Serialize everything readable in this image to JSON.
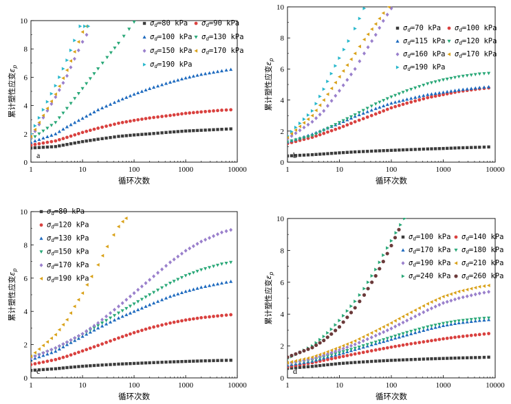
{
  "colors": {
    "black": "#3c3c3c",
    "red": "#d9413f",
    "blue": "#1f6bbf",
    "green": "#2aa878",
    "purple": "#9a80cc",
    "orange": "#d9a21a",
    "cyan": "#2ab8cc",
    "maroon": "#6b3a3a"
  },
  "chart_data": [
    {
      "type": "scatter",
      "panel_label": "a",
      "xlabel": "循环次数",
      "ylabel": "累计塑性应变ε_p",
      "x_scale": "log",
      "xlim": [
        1,
        10000
      ],
      "ylim": [
        0,
        10
      ],
      "x_ticks": [
        1,
        10,
        100,
        1000,
        10000
      ],
      "x_tick_labels": [
        "1",
        "10",
        "100",
        "1000",
        "10000"
      ],
      "y_ticks": [
        0,
        2,
        4,
        6,
        8,
        10
      ],
      "y_tick_labels": [
        "0",
        "2",
        "4",
        "6",
        "8",
        "10"
      ],
      "legend_columns": 2,
      "series": [
        {
          "name": "σd=80 kPa",
          "color": "black",
          "marker": "square",
          "x": [
            1,
            3,
            5,
            10,
            20,
            50,
            100,
            200,
            500,
            1000,
            2000,
            5000,
            7500
          ],
          "y": [
            1.0,
            1.1,
            1.25,
            1.45,
            1.62,
            1.82,
            1.92,
            2.0,
            2.12,
            2.2,
            2.25,
            2.32,
            2.35
          ]
        },
        {
          "name": "σd=90 kPa",
          "color": "red",
          "marker": "circle",
          "x": [
            1,
            3,
            5,
            10,
            20,
            50,
            100,
            200,
            500,
            1000,
            2000,
            5000,
            7500
          ],
          "y": [
            1.2,
            1.5,
            1.75,
            2.1,
            2.4,
            2.75,
            2.95,
            3.12,
            3.3,
            3.45,
            3.55,
            3.67,
            3.7
          ]
        },
        {
          "name": "σd=100 kPa",
          "color": "blue",
          "marker": "triangle",
          "x": [
            1,
            3,
            5,
            10,
            20,
            50,
            100,
            200,
            500,
            1000,
            2000,
            5000,
            7500
          ],
          "y": [
            1.4,
            2.0,
            2.5,
            3.1,
            3.7,
            4.35,
            4.8,
            5.2,
            5.65,
            5.95,
            6.2,
            6.45,
            6.55
          ]
        },
        {
          "name": "σd=130 kPa",
          "color": "green",
          "marker": "triangle-down",
          "x": [
            1,
            3,
            5,
            10,
            20,
            30,
            50,
            80,
            100
          ],
          "y": [
            1.6,
            2.8,
            3.8,
            5.2,
            6.6,
            7.4,
            8.4,
            9.4,
            9.9
          ]
        },
        {
          "name": "σd=150 kPa",
          "color": "purple",
          "marker": "diamond",
          "x": [
            1,
            3,
            5,
            7,
            10,
            12
          ],
          "y": [
            1.7,
            4.6,
            6.1,
            7.3,
            8.5,
            9.0
          ]
        },
        {
          "name": "σd=170 kPa",
          "color": "orange",
          "marker": "triangle-left",
          "x": [
            1,
            3,
            5,
            7,
            10,
            12
          ],
          "y": [
            1.8,
            4.8,
            6.5,
            7.8,
            9.2,
            9.6
          ]
        },
        {
          "name": "σd=190 kPa",
          "color": "cyan",
          "marker": "triangle-right",
          "x": [
            1,
            3,
            5,
            7,
            9,
            11,
            13
          ],
          "y": [
            2.0,
            5.4,
            7.2,
            8.6,
            9.6,
            9.6,
            9.6
          ]
        }
      ]
    },
    {
      "type": "scatter",
      "panel_label": "b",
      "xlabel": "循环次数",
      "ylabel": "累计塑性应变ε_p",
      "x_scale": "log",
      "xlim": [
        1,
        10000
      ],
      "ylim": [
        0,
        10
      ],
      "x_ticks": [
        1,
        10,
        100,
        1000,
        10000
      ],
      "x_tick_labels": [
        "1",
        "10",
        "100",
        "1000",
        "10000"
      ],
      "y_ticks": [
        0,
        2,
        4,
        6,
        8,
        10
      ],
      "y_tick_labels": [
        "0",
        "2",
        "4",
        "6",
        "8",
        "10"
      ],
      "legend_columns": 2,
      "series": [
        {
          "name": "σd=70 kPa",
          "color": "black",
          "marker": "square",
          "x": [
            1,
            3,
            5,
            10,
            20,
            50,
            100,
            200,
            500,
            1000,
            2000,
            5000,
            7500
          ],
          "y": [
            0.4,
            0.48,
            0.53,
            0.6,
            0.66,
            0.72,
            0.76,
            0.8,
            0.85,
            0.88,
            0.92,
            0.96,
            0.98
          ]
        },
        {
          "name": "σd=100 kPa",
          "color": "red",
          "marker": "circle",
          "x": [
            1,
            3,
            5,
            10,
            20,
            50,
            100,
            200,
            500,
            1000,
            2000,
            5000,
            7500
          ],
          "y": [
            1.2,
            1.6,
            1.85,
            2.2,
            2.6,
            3.1,
            3.5,
            3.8,
            4.15,
            4.35,
            4.55,
            4.72,
            4.78
          ]
        },
        {
          "name": "σd=115 kPa",
          "color": "blue",
          "marker": "triangle",
          "x": [
            1,
            3,
            5,
            10,
            20,
            50,
            100,
            200,
            500,
            1000,
            2000,
            5000,
            7500
          ],
          "y": [
            1.3,
            1.8,
            2.1,
            2.5,
            2.95,
            3.45,
            3.8,
            4.05,
            4.35,
            4.5,
            4.65,
            4.8,
            4.85
          ]
        },
        {
          "name": "σd=120 kPa",
          "color": "green",
          "marker": "triangle-down",
          "x": [
            1,
            3,
            5,
            10,
            20,
            50,
            100,
            200,
            500,
            1000,
            2000,
            5000,
            7500
          ],
          "y": [
            1.3,
            1.7,
            2.05,
            2.55,
            3.05,
            3.75,
            4.2,
            4.6,
            5.05,
            5.3,
            5.5,
            5.68,
            5.72
          ]
        },
        {
          "name": "σd=160 kPa",
          "color": "purple",
          "marker": "diamond",
          "x": [
            1,
            3,
            5,
            10,
            20,
            30,
            50,
            70,
            100
          ],
          "y": [
            1.5,
            2.6,
            3.3,
            4.6,
            6.0,
            7.0,
            8.2,
            9.1,
            9.9
          ]
        },
        {
          "name": "σd=170 kPa",
          "color": "orange",
          "marker": "triangle-left",
          "x": [
            1,
            3,
            5,
            10,
            20,
            30,
            50,
            70,
            90
          ],
          "y": [
            1.6,
            3.0,
            4.0,
            5.5,
            7.0,
            7.9,
            8.9,
            9.6,
            10.0
          ]
        },
        {
          "name": "σd=190 kPa",
          "color": "cyan",
          "marker": "triangle-right",
          "x": [
            1,
            3,
            5,
            7,
            10,
            15,
            20,
            30
          ],
          "y": [
            1.7,
            3.3,
            4.7,
            5.7,
            6.7,
            7.8,
            8.6,
            9.9
          ]
        }
      ]
    },
    {
      "type": "scatter",
      "panel_label": "c",
      "xlabel": "循环次数",
      "ylabel": "累计塑性应变ε_p",
      "x_scale": "log",
      "xlim": [
        1,
        10000
      ],
      "ylim": [
        0,
        10
      ],
      "x_ticks": [
        1,
        10,
        100,
        1000,
        10000
      ],
      "x_tick_labels": [
        "1",
        "10",
        "100",
        "1000",
        "10000"
      ],
      "y_ticks": [
        0,
        2,
        4,
        6,
        8,
        10
      ],
      "y_tick_labels": [
        "0",
        "2",
        "4",
        "6",
        "8",
        "10"
      ],
      "legend_columns": 1,
      "series": [
        {
          "name": "σd=80 kPa",
          "color": "black",
          "marker": "square",
          "x": [
            1,
            3,
            5,
            10,
            20,
            50,
            100,
            200,
            500,
            1000,
            2000,
            5000,
            7500
          ],
          "y": [
            0.45,
            0.55,
            0.62,
            0.7,
            0.76,
            0.83,
            0.87,
            0.91,
            0.96,
            0.99,
            1.02,
            1.05,
            1.06
          ]
        },
        {
          "name": "σd=120 kPa",
          "color": "red",
          "marker": "circle",
          "x": [
            1,
            3,
            5,
            10,
            20,
            50,
            100,
            200,
            500,
            1000,
            2000,
            5000,
            7500
          ],
          "y": [
            0.8,
            1.1,
            1.3,
            1.62,
            1.95,
            2.4,
            2.72,
            3.0,
            3.3,
            3.48,
            3.62,
            3.75,
            3.8
          ]
        },
        {
          "name": "σd=130 kPa",
          "color": "blue",
          "marker": "triangle",
          "x": [
            1,
            3,
            5,
            10,
            20,
            50,
            100,
            200,
            500,
            1000,
            2000,
            5000,
            7500
          ],
          "y": [
            1.1,
            1.6,
            2.0,
            2.5,
            3.0,
            3.6,
            4.0,
            4.4,
            4.9,
            5.2,
            5.45,
            5.7,
            5.8
          ]
        },
        {
          "name": "σd=150 kPa",
          "color": "green",
          "marker": "triangle-down",
          "x": [
            1,
            3,
            5,
            10,
            20,
            50,
            100,
            200,
            500,
            1000,
            2000,
            5000,
            7500
          ],
          "y": [
            1.2,
            1.75,
            2.1,
            2.6,
            3.15,
            3.9,
            4.45,
            5.0,
            5.7,
            6.15,
            6.5,
            6.85,
            6.95
          ]
        },
        {
          "name": "σd=170 kPa",
          "color": "purple",
          "marker": "diamond",
          "x": [
            1,
            3,
            5,
            10,
            20,
            50,
            100,
            200,
            500,
            1000,
            2000,
            5000,
            7500
          ],
          "y": [
            1.2,
            1.8,
            2.15,
            2.65,
            3.3,
            4.3,
            5.1,
            5.9,
            6.95,
            7.65,
            8.2,
            8.75,
            8.9
          ]
        },
        {
          "name": "σd=190 kPa",
          "color": "orange",
          "marker": "triangle-left",
          "x": [
            1,
            3,
            5,
            7,
            10,
            15,
            20,
            30,
            40,
            50,
            60,
            70
          ],
          "y": [
            1.3,
            2.6,
            3.5,
            4.3,
            5.1,
            6.1,
            6.8,
            7.9,
            8.6,
            9.1,
            9.4,
            9.6
          ]
        }
      ]
    },
    {
      "type": "scatter",
      "panel_label": "d",
      "xlabel": "循环次数",
      "ylabel": "累计塑性应变ε_p",
      "x_scale": "log",
      "xlim": [
        1,
        10000
      ],
      "ylim": [
        0,
        10
      ],
      "x_ticks": [
        1,
        10,
        100,
        1000,
        10000
      ],
      "x_tick_labels": [
        "1",
        "10",
        "100",
        "1000",
        "10000"
      ],
      "y_ticks": [
        0,
        2,
        4,
        6,
        8,
        10
      ],
      "y_tick_labels": [
        "0",
        "2",
        "4",
        "6",
        "8",
        "10"
      ],
      "legend_columns": 2,
      "series": [
        {
          "name": "σd=100 kPa",
          "color": "black",
          "marker": "square",
          "x": [
            1,
            3,
            5,
            10,
            20,
            50,
            100,
            200,
            500,
            1000,
            2000,
            5000,
            7500
          ],
          "y": [
            0.6,
            0.72,
            0.8,
            0.9,
            0.97,
            1.05,
            1.1,
            1.14,
            1.19,
            1.22,
            1.25,
            1.28,
            1.3
          ]
        },
        {
          "name": "σd=140 kPa",
          "color": "red",
          "marker": "circle",
          "x": [
            1,
            3,
            5,
            10,
            20,
            50,
            100,
            200,
            500,
            1000,
            2000,
            5000,
            7500
          ],
          "y": [
            0.7,
            0.95,
            1.1,
            1.3,
            1.5,
            1.75,
            1.93,
            2.1,
            2.3,
            2.45,
            2.58,
            2.72,
            2.78
          ]
        },
        {
          "name": "σd=170 kPa",
          "color": "blue",
          "marker": "triangle",
          "x": [
            1,
            3,
            5,
            10,
            20,
            50,
            100,
            200,
            500,
            1000,
            2000,
            5000,
            7500
          ],
          "y": [
            0.8,
            1.05,
            1.25,
            1.5,
            1.78,
            2.15,
            2.42,
            2.7,
            3.05,
            3.28,
            3.45,
            3.6,
            3.65
          ]
        },
        {
          "name": "σd=180 kPa",
          "color": "green",
          "marker": "triangle-down",
          "x": [
            1,
            3,
            5,
            10,
            20,
            50,
            100,
            200,
            500,
            1000,
            2000,
            5000,
            7500
          ],
          "y": [
            0.85,
            1.1,
            1.3,
            1.58,
            1.86,
            2.25,
            2.55,
            2.85,
            3.2,
            3.42,
            3.58,
            3.72,
            3.76
          ]
        },
        {
          "name": "σd=190 kPa",
          "color": "purple",
          "marker": "diamond",
          "x": [
            1,
            3,
            5,
            10,
            20,
            50,
            100,
            200,
            500,
            1000,
            2000,
            5000,
            7500
          ],
          "y": [
            0.9,
            1.2,
            1.42,
            1.75,
            2.1,
            2.65,
            3.1,
            3.6,
            4.25,
            4.7,
            5.0,
            5.3,
            5.4
          ]
        },
        {
          "name": "σd=210 kPa",
          "color": "orange",
          "marker": "triangle-left",
          "x": [
            1,
            3,
            5,
            10,
            20,
            50,
            100,
            200,
            500,
            1000,
            2000,
            5000,
            7500
          ],
          "y": [
            0.95,
            1.3,
            1.55,
            1.92,
            2.32,
            2.95,
            3.45,
            3.98,
            4.65,
            5.1,
            5.42,
            5.72,
            5.8
          ]
        },
        {
          "name": "σd=240 kPa",
          "color": "green",
          "marker": "triangle-right",
          "x": [
            1,
            3,
            5,
            7,
            10,
            20,
            30,
            50,
            70,
            100,
            150,
            180
          ],
          "y": [
            1.2,
            2.0,
            2.6,
            3.05,
            3.6,
            4.8,
            5.6,
            6.8,
            7.7,
            8.6,
            9.6,
            10.0
          ]
        },
        {
          "name": "σd=260 kPa",
          "color": "maroon",
          "marker": "hexagon",
          "x": [
            1,
            3,
            5,
            7,
            10,
            20,
            30,
            50,
            70,
            100,
            140
          ],
          "y": [
            1.3,
            1.9,
            2.35,
            2.75,
            3.2,
            4.4,
            5.2,
            6.4,
            7.3,
            8.3,
            9.3
          ]
        }
      ]
    }
  ]
}
